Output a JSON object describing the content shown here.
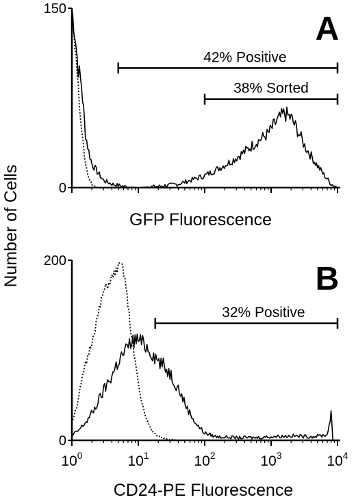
{
  "shared": {
    "ylabel": "Number of Cells"
  },
  "chart_data": [
    {
      "panel": "A",
      "type": "line",
      "xlabel": "GFP Fluorescence",
      "x_scale": "log",
      "xlim": [
        1,
        10000
      ],
      "ylim": [
        0,
        150
      ],
      "y_ticks": [
        "0",
        "150"
      ],
      "x_tick_labels_shown": false,
      "series": [
        {
          "style": "solid",
          "points": [
            [
              1,
              150
            ],
            [
              1.1,
              130
            ],
            [
              1.25,
              100
            ],
            [
              1.4,
              85
            ],
            [
              1.6,
              45
            ],
            [
              1.8,
              30
            ],
            [
              2.0,
              20
            ],
            [
              2.5,
              12
            ],
            [
              3,
              6
            ],
            [
              4,
              3
            ],
            [
              6,
              1
            ],
            [
              10,
              0
            ],
            [
              20,
              1
            ],
            [
              40,
              3
            ],
            [
              60,
              6
            ],
            [
              100,
              10
            ],
            [
              150,
              15
            ],
            [
              250,
              22
            ],
            [
              400,
              30
            ],
            [
              600,
              38
            ],
            [
              900,
              45
            ],
            [
              1200,
              55
            ],
            [
              1600,
              62
            ],
            [
              2000,
              58
            ],
            [
              2500,
              48
            ],
            [
              3200,
              35
            ],
            [
              4500,
              22
            ],
            [
              6000,
              12
            ],
            [
              8000,
              3
            ],
            [
              10000,
              0
            ]
          ]
        },
        {
          "style": "dotted",
          "points": [
            [
              1,
              150
            ],
            [
              1.15,
              110
            ],
            [
              1.3,
              70
            ],
            [
              1.45,
              40
            ],
            [
              1.6,
              20
            ],
            [
              1.8,
              8
            ],
            [
              2.0,
              3
            ],
            [
              2.3,
              0
            ],
            [
              2.6,
              0
            ]
          ]
        }
      ],
      "annotations": [
        {
          "text": "42% Positive",
          "from": 5,
          "to": 10000,
          "y": 100
        },
        {
          "text": "38% Sorted",
          "from": 100,
          "to": 10000,
          "y": 74
        }
      ]
    },
    {
      "panel": "B",
      "type": "line",
      "xlabel": "CD24-PE Fluorescence",
      "x_scale": "log",
      "xlim": [
        1,
        10000
      ],
      "ylim": [
        0,
        200
      ],
      "y_ticks": [
        "0",
        "200"
      ],
      "x_ticks": [
        {
          "value": 1,
          "base": "10",
          "exp": "0"
        },
        {
          "value": 10,
          "base": "10",
          "exp": "1"
        },
        {
          "value": 100,
          "base": "10",
          "exp": "2"
        },
        {
          "value": 1000,
          "base": "10",
          "exp": "3"
        },
        {
          "value": 10000,
          "base": "10",
          "exp": "4"
        }
      ],
      "series": [
        {
          "style": "solid",
          "points": [
            [
              1,
              5
            ],
            [
              1.3,
              12
            ],
            [
              1.7,
              22
            ],
            [
              2.2,
              35
            ],
            [
              3,
              55
            ],
            [
              4,
              72
            ],
            [
              5,
              88
            ],
            [
              6.5,
              100
            ],
            [
              8,
              110
            ],
            [
              10,
              112
            ],
            [
              13,
              105
            ],
            [
              17,
              95
            ],
            [
              22,
              85
            ],
            [
              30,
              75
            ],
            [
              40,
              58
            ],
            [
              55,
              35
            ],
            [
              75,
              18
            ],
            [
              100,
              8
            ],
            [
              150,
              4
            ],
            [
              300,
              3
            ],
            [
              600,
              3
            ],
            [
              1000,
              4
            ],
            [
              2000,
              5
            ],
            [
              4000,
              4
            ],
            [
              7000,
              6
            ],
            [
              8000,
              30
            ],
            [
              8500,
              0
            ],
            [
              10000,
              0
            ]
          ]
        },
        {
          "style": "dotted",
          "points": [
            [
              1,
              20
            ],
            [
              1.2,
              40
            ],
            [
              1.5,
              75
            ],
            [
              2,
              110
            ],
            [
              2.5,
              140
            ],
            [
              3,
              165
            ],
            [
              4,
              180
            ],
            [
              5,
              192
            ],
            [
              5.6,
              195
            ],
            [
              6.3,
              180
            ],
            [
              7.5,
              130
            ],
            [
              9,
              85
            ],
            [
              11,
              45
            ],
            [
              13.5,
              22
            ],
            [
              16,
              10
            ],
            [
              20,
              4
            ],
            [
              30,
              1
            ],
            [
              40,
              0
            ]
          ]
        }
      ],
      "annotations": [
        {
          "text": "32% Positive",
          "from": 18,
          "to": 10000,
          "y": 130
        }
      ]
    }
  ]
}
